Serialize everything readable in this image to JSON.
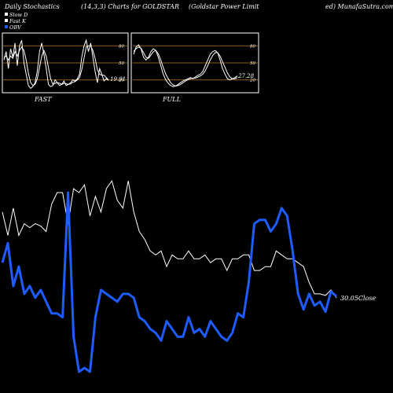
{
  "header": {
    "left": "Daily Stochastics",
    "center": "(14,3,3) Charts for GOLDSTAR",
    "right": "(Goldstar Power Limit",
    "far_right": "ed) MunafaSutra.com"
  },
  "legend": [
    {
      "label": "Slow  D",
      "color": "#ffffff"
    },
    {
      "label": "Fast K",
      "color": "#ffffff"
    },
    {
      "label": "OBV",
      "color": "#1e5cff"
    }
  ],
  "colors": {
    "background": "#000000",
    "price": "#ffffff",
    "obv": "#1e5cff",
    "band": "#8a5a10",
    "frame": "#ffffff"
  },
  "panels": [
    {
      "label": "FAST",
      "value_label": "19.01",
      "levels": [
        20,
        50,
        80
      ],
      "ylim": [
        0,
        100
      ],
      "k": [
        55,
        70,
        40,
        75,
        60,
        85,
        45,
        80,
        90,
        50,
        30,
        10,
        5,
        8,
        15,
        35,
        70,
        85,
        65,
        40,
        12,
        8,
        10,
        20,
        15,
        10,
        12,
        18,
        10,
        12,
        15,
        20,
        18,
        22,
        30,
        60,
        80,
        90,
        70,
        85,
        60,
        35,
        15,
        40,
        30,
        18,
        22,
        19
      ],
      "d": [
        60,
        62,
        55,
        62,
        58,
        70,
        62,
        72,
        78,
        72,
        55,
        32,
        15,
        10,
        12,
        22,
        42,
        62,
        72,
        62,
        42,
        22,
        12,
        14,
        15,
        14,
        12,
        14,
        13,
        12,
        13,
        16,
        17,
        20,
        24,
        38,
        58,
        78,
        80,
        80,
        72,
        58,
        38,
        30,
        28,
        28,
        24,
        20
      ]
    },
    {
      "label": "FULL",
      "value_label": "27.28",
      "levels": [
        20,
        50,
        80
      ],
      "ylim": [
        0,
        100
      ],
      "k": [
        65,
        78,
        82,
        75,
        60,
        55,
        60,
        70,
        75,
        72,
        60,
        45,
        30,
        20,
        14,
        10,
        8,
        9,
        12,
        15,
        18,
        20,
        22,
        24,
        22,
        25,
        28,
        30,
        35,
        45,
        55,
        65,
        70,
        72,
        68,
        55,
        40,
        30,
        22,
        20,
        22,
        24,
        27
      ],
      "d": [
        70,
        75,
        78,
        76,
        68,
        60,
        58,
        64,
        70,
        72,
        66,
        55,
        42,
        30,
        22,
        15,
        11,
        9,
        10,
        12,
        15,
        18,
        20,
        22,
        23,
        23,
        25,
        27,
        30,
        36,
        45,
        55,
        63,
        68,
        68,
        62,
        52,
        42,
        32,
        25,
        22,
        22,
        24
      ]
    }
  ],
  "main": {
    "close_label": "30.05Close",
    "price": [
      270,
      300,
      265,
      300,
      285,
      290,
      285,
      288,
      295,
      260,
      245,
      245,
      285,
      240,
      245,
      235,
      275,
      250,
      270,
      240,
      230,
      255,
      265,
      230,
      270,
      295,
      305,
      320,
      325,
      320,
      340,
      325,
      330,
      330,
      320,
      330,
      330,
      325,
      335,
      330,
      330,
      345,
      330,
      330,
      325,
      325,
      345,
      345,
      340,
      340,
      320,
      325,
      330,
      330,
      335,
      340,
      360,
      375,
      375,
      377,
      370,
      380
    ],
    "obv": [
      335,
      310,
      365,
      340,
      375,
      365,
      380,
      370,
      385,
      400,
      400,
      405,
      245,
      430,
      475,
      470,
      475,
      405,
      370,
      375,
      380,
      385,
      375,
      375,
      380,
      405,
      410,
      420,
      425,
      435,
      410,
      420,
      430,
      430,
      405,
      425,
      420,
      430,
      410,
      420,
      430,
      435,
      425,
      400,
      405,
      360,
      285,
      280,
      280,
      295,
      285,
      265,
      275,
      320,
      375,
      395,
      375,
      390,
      385,
      398,
      372,
      378
    ],
    "ylim": [
      240,
      480
    ]
  }
}
